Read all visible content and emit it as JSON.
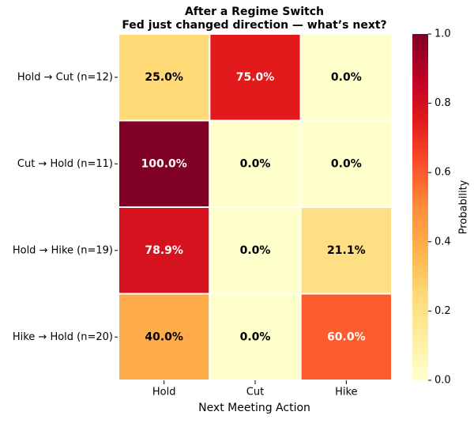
{
  "chart_data": {
    "type": "heatmap",
    "title": "After a Regime Switch",
    "subtitle": "Fed just changed direction — what’s next?",
    "rows": [
      "Hold → Cut  (n=12)",
      "Cut → Hold  (n=11)",
      "Hold → Hike  (n=19)",
      "Hike → Hold  (n=20)"
    ],
    "columns": [
      "Hold",
      "Cut",
      "Hike"
    ],
    "values": [
      [
        0.25,
        0.75,
        0.0
      ],
      [
        1.0,
        0.0,
        0.0
      ],
      [
        0.789,
        0.0,
        0.211
      ],
      [
        0.4,
        0.0,
        0.6
      ]
    ],
    "value_labels": [
      [
        "25.0%",
        "75.0%",
        "0.0%"
      ],
      [
        "100.0%",
        "0.0%",
        "0.0%"
      ],
      [
        "78.9%",
        "0.0%",
        "21.1%"
      ],
      [
        "40.0%",
        "0.0%",
        "60.0%"
      ]
    ],
    "xlabel": "Next Meeting Action",
    "colormap": "YlOrRd",
    "zlim": [
      0,
      1
    ],
    "zticks": [
      {
        "value": 0,
        "label": "0.0"
      },
      {
        "value": 0.2,
        "label": "0.2"
      },
      {
        "value": 0.4,
        "label": "0.4"
      },
      {
        "value": 0.6,
        "label": "0.6"
      },
      {
        "value": 0.8,
        "label": "0.8"
      },
      {
        "value": 1,
        "label": "1.0"
      }
    ],
    "zlabel": "Probability"
  }
}
